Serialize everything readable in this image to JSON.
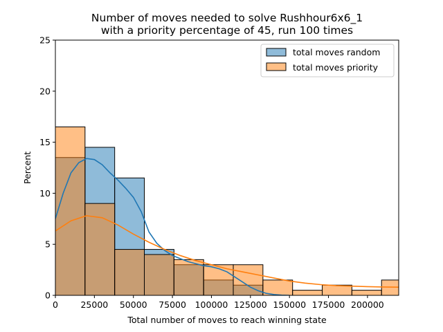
{
  "chart_data": {
    "type": "histogram",
    "title_lines": [
      "Number of moves needed to solve Rushhour6x6_1",
      "with a priority percentage of 45, run 100 times"
    ],
    "xlabel": "Total number of moves to reach winning state",
    "ylabel": "Percent",
    "xlim": [
      0,
      220000
    ],
    "ylim": [
      0,
      25
    ],
    "xticks": [
      0,
      25000,
      50000,
      75000,
      100000,
      125000,
      150000,
      175000,
      200000
    ],
    "yticks": [
      0,
      5,
      10,
      15,
      20,
      25
    ],
    "bin_edges": [
      0,
      19000,
      38000,
      57000,
      76000,
      95000,
      114000,
      133000,
      152000,
      171000,
      190000,
      209000,
      228000
    ],
    "grid": false,
    "legend_position": "top-right",
    "series": [
      {
        "name": "total moves random",
        "color": "#1f77b4",
        "values": [
          13.5,
          14.5,
          11.5,
          4.5,
          3.0,
          1.5,
          1.0,
          0,
          0,
          0,
          0,
          0
        ],
        "kde": [
          [
            0,
            7.5
          ],
          [
            5000,
            10
          ],
          [
            10000,
            12
          ],
          [
            15000,
            13
          ],
          [
            20000,
            13.4
          ],
          [
            25000,
            13.3
          ],
          [
            30000,
            12.8
          ],
          [
            35000,
            12
          ],
          [
            40000,
            11.3
          ],
          [
            45000,
            10.5
          ],
          [
            50000,
            9.6
          ],
          [
            55000,
            8.2
          ],
          [
            60000,
            6.2
          ],
          [
            65000,
            5.1
          ],
          [
            70000,
            4.4
          ],
          [
            75000,
            3.9
          ],
          [
            80000,
            3.6
          ],
          [
            85000,
            3.3
          ],
          [
            90000,
            3.1
          ],
          [
            95000,
            2.9
          ],
          [
            100000,
            2.8
          ],
          [
            105000,
            2.6
          ],
          [
            110000,
            2.3
          ],
          [
            115000,
            1.8
          ],
          [
            120000,
            1.3
          ],
          [
            125000,
            0.8
          ],
          [
            130000,
            0.45
          ],
          [
            135000,
            0.2
          ],
          [
            140000,
            0.08
          ],
          [
            145000,
            0.02
          ],
          [
            150000,
            0
          ]
        ]
      },
      {
        "name": "total moves priority",
        "color": "#ff7f0e",
        "values": [
          16.5,
          9.0,
          4.5,
          4.0,
          3.5,
          3.0,
          3.0,
          1.5,
          0.5,
          1.0,
          0.5,
          1.5
        ],
        "kde": [
          [
            0,
            6.3
          ],
          [
            10000,
            7.3
          ],
          [
            20000,
            7.8
          ],
          [
            30000,
            7.6
          ],
          [
            40000,
            6.9
          ],
          [
            50000,
            6.0
          ],
          [
            60000,
            5.2
          ],
          [
            70000,
            4.5
          ],
          [
            80000,
            3.9
          ],
          [
            90000,
            3.4
          ],
          [
            100000,
            3.0
          ],
          [
            110000,
            2.6
          ],
          [
            120000,
            2.3
          ],
          [
            130000,
            2.0
          ],
          [
            140000,
            1.7
          ],
          [
            150000,
            1.4
          ],
          [
            160000,
            1.2
          ],
          [
            170000,
            1.05
          ],
          [
            180000,
            0.95
          ],
          [
            190000,
            0.9
          ],
          [
            200000,
            0.85
          ],
          [
            210000,
            0.82
          ],
          [
            220000,
            0.8
          ]
        ]
      }
    ]
  }
}
